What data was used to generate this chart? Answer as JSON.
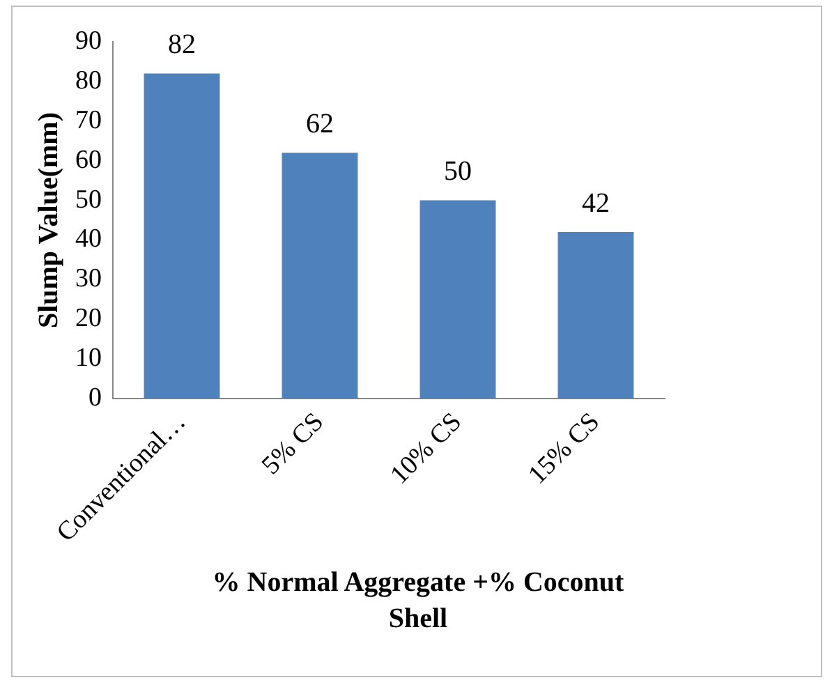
{
  "chart_data": {
    "type": "bar",
    "categories": [
      "Conventional…",
      "5% CS",
      "10% CS",
      "15% CS"
    ],
    "values": [
      82,
      62,
      50,
      42
    ],
    "color": "#4f81bd",
    "ylim": [
      0,
      90
    ],
    "yticks": [
      0,
      10,
      20,
      30,
      40,
      50,
      60,
      70,
      80,
      90
    ],
    "ylabel": "Slump Value(mm)",
    "xlabel": "% Normal Aggregate +% Coconut Shell",
    "data_labels": true,
    "grid": false,
    "legend": false
  }
}
